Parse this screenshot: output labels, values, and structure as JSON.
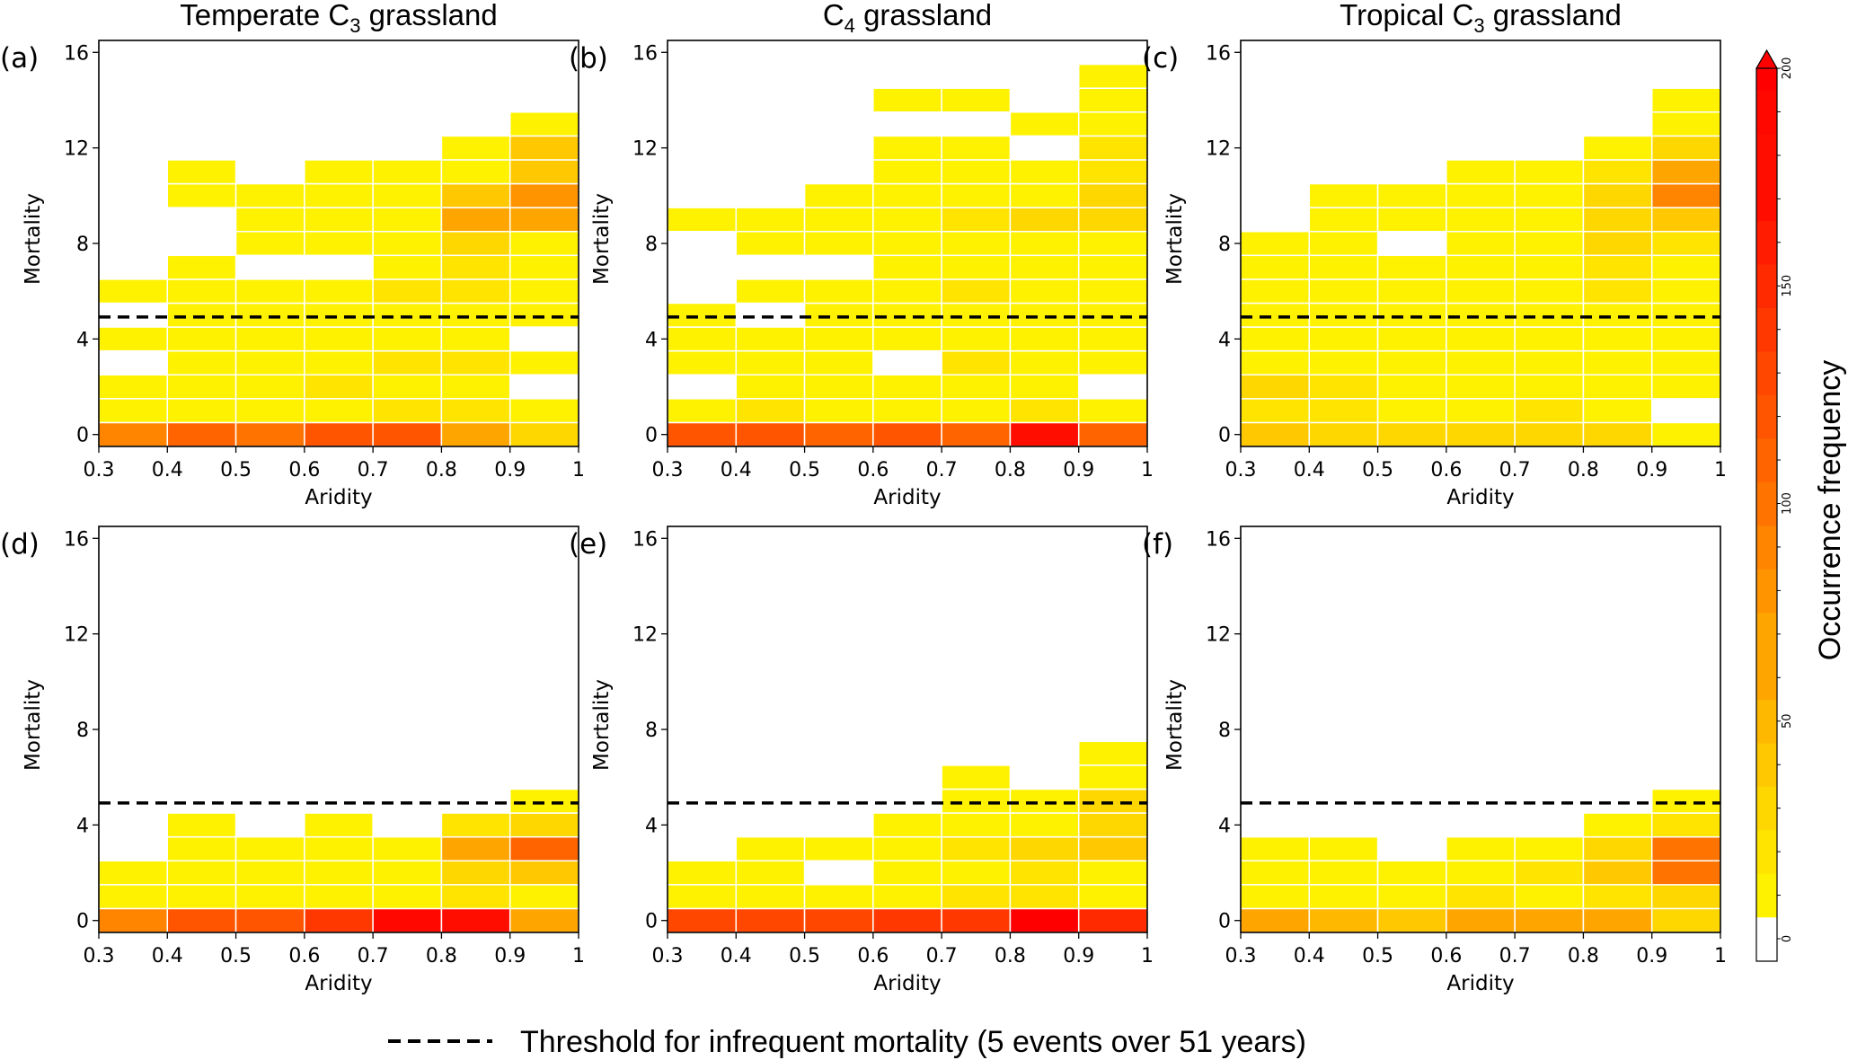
{
  "chart_data": {
    "type": "heatmap",
    "xlabel": "Aridity",
    "ylabel": "Mortality",
    "x_bins": [
      0.3,
      0.4,
      0.5,
      0.6,
      0.7,
      0.8,
      0.9,
      1.0
    ],
    "x_tick_labels": [
      "0.3",
      "0.4",
      "0.5",
      "0.6",
      "0.7",
      "0.8",
      "0.9",
      "1"
    ],
    "y_ticks": [
      0,
      4,
      8,
      12,
      16
    ],
    "y_tick_labels": [
      "0",
      "4",
      "8",
      "12",
      "16"
    ],
    "ylim": [
      -0.5,
      16.5
    ],
    "xlim": [
      0.3,
      1.0
    ],
    "threshold": 5,
    "threshold_legend": "Threshold for infrequent mortality (5 events over 51 years)",
    "colorbar": {
      "label": "Occurrence frequency",
      "range": [
        0,
        200
      ],
      "ticks": [
        0,
        50,
        100,
        150,
        200
      ],
      "tick_labels": [
        "0",
        "50",
        "100",
        "150",
        "200"
      ],
      "step": 10,
      "extend": "max",
      "white_below": 5
    },
    "column_titles": [
      {
        "pre": "Temperate C",
        "sub": "3",
        "post": " grassland"
      },
      {
        "pre": "C",
        "sub": "4",
        "post": " grassland"
      },
      {
        "pre": "Tropical C",
        "sub": "3",
        "post": " grassland"
      }
    ],
    "panels": [
      {
        "label": "(a)",
        "note": "rows = mortality 0..16, columns = aridity bins 0.3-0.4 ... 0.9-1.0; 0 means empty (white)",
        "values": [
          [
            85,
            105,
            100,
            125,
            125,
            70,
            35
          ],
          [
            10,
            10,
            10,
            10,
            18,
            18,
            10
          ],
          [
            10,
            10,
            10,
            18,
            10,
            10,
            0
          ],
          [
            0,
            10,
            10,
            10,
            18,
            18,
            10
          ],
          [
            10,
            10,
            10,
            10,
            10,
            10,
            0
          ],
          [
            0,
            10,
            10,
            10,
            10,
            10,
            10
          ],
          [
            10,
            10,
            10,
            10,
            18,
            22,
            10
          ],
          [
            0,
            10,
            0,
            0,
            10,
            22,
            10
          ],
          [
            0,
            0,
            10,
            10,
            10,
            28,
            10
          ],
          [
            0,
            0,
            10,
            10,
            10,
            65,
            65
          ],
          [
            0,
            10,
            10,
            10,
            10,
            45,
            75
          ],
          [
            0,
            10,
            0,
            10,
            10,
            10,
            40
          ],
          [
            0,
            0,
            0,
            0,
            0,
            10,
            40
          ],
          [
            0,
            0,
            0,
            0,
            0,
            0,
            10
          ],
          [
            0,
            0,
            0,
            0,
            0,
            0,
            0
          ],
          [
            0,
            0,
            0,
            0,
            0,
            0,
            0
          ],
          [
            0,
            0,
            0,
            0,
            0,
            0,
            0
          ]
        ]
      },
      {
        "label": "(b)",
        "values": [
          [
            115,
            115,
            105,
            115,
            110,
            175,
            110
          ],
          [
            10,
            18,
            10,
            10,
            10,
            22,
            10
          ],
          [
            0,
            10,
            10,
            10,
            10,
            10,
            0
          ],
          [
            10,
            10,
            10,
            0,
            18,
            10,
            10
          ],
          [
            10,
            10,
            10,
            10,
            10,
            10,
            10
          ],
          [
            10,
            0,
            10,
            10,
            10,
            10,
            10
          ],
          [
            0,
            10,
            10,
            10,
            18,
            10,
            10
          ],
          [
            0,
            0,
            0,
            10,
            10,
            10,
            10
          ],
          [
            0,
            10,
            10,
            10,
            10,
            10,
            10
          ],
          [
            10,
            10,
            10,
            10,
            18,
            28,
            28
          ],
          [
            0,
            0,
            10,
            10,
            10,
            10,
            28
          ],
          [
            0,
            0,
            0,
            10,
            10,
            10,
            22
          ],
          [
            0,
            0,
            0,
            10,
            10,
            0,
            22
          ],
          [
            0,
            0,
            0,
            0,
            0,
            10,
            10
          ],
          [
            0,
            0,
            0,
            10,
            10,
            0,
            10
          ],
          [
            0,
            0,
            0,
            0,
            0,
            0,
            10
          ],
          [
            0,
            0,
            0,
            0,
            0,
            0,
            0
          ]
        ]
      },
      {
        "label": "(c)",
        "values": [
          [
            40,
            30,
            30,
            35,
            30,
            28,
            10
          ],
          [
            22,
            22,
            10,
            10,
            18,
            10,
            0
          ],
          [
            28,
            22,
            10,
            10,
            10,
            10,
            10
          ],
          [
            10,
            10,
            10,
            10,
            10,
            10,
            10
          ],
          [
            10,
            10,
            10,
            10,
            10,
            10,
            10
          ],
          [
            10,
            10,
            10,
            10,
            10,
            10,
            10
          ],
          [
            10,
            10,
            10,
            10,
            10,
            22,
            10
          ],
          [
            10,
            10,
            10,
            10,
            10,
            22,
            10
          ],
          [
            10,
            10,
            0,
            10,
            10,
            28,
            22
          ],
          [
            0,
            10,
            10,
            10,
            10,
            30,
            45
          ],
          [
            0,
            10,
            10,
            10,
            10,
            35,
            90
          ],
          [
            0,
            0,
            0,
            10,
            10,
            22,
            70
          ],
          [
            0,
            0,
            0,
            0,
            0,
            10,
            30
          ],
          [
            0,
            0,
            0,
            0,
            0,
            0,
            10
          ],
          [
            0,
            0,
            0,
            0,
            0,
            0,
            10
          ],
          [
            0,
            0,
            0,
            0,
            0,
            0,
            0
          ],
          [
            0,
            0,
            0,
            0,
            0,
            0,
            0
          ]
        ]
      },
      {
        "label": "(d)",
        "values": [
          [
            85,
            120,
            120,
            145,
            190,
            175,
            70
          ],
          [
            10,
            10,
            10,
            10,
            10,
            18,
            10
          ],
          [
            10,
            10,
            10,
            10,
            10,
            30,
            45
          ],
          [
            0,
            10,
            10,
            10,
            10,
            60,
            110
          ],
          [
            0,
            10,
            0,
            10,
            0,
            18,
            28
          ],
          [
            0,
            0,
            0,
            0,
            0,
            0,
            10
          ],
          [
            0,
            0,
            0,
            0,
            0,
            0,
            0
          ],
          [
            0,
            0,
            0,
            0,
            0,
            0,
            0
          ],
          [
            0,
            0,
            0,
            0,
            0,
            0,
            0
          ],
          [
            0,
            0,
            0,
            0,
            0,
            0,
            0
          ],
          [
            0,
            0,
            0,
            0,
            0,
            0,
            0
          ],
          [
            0,
            0,
            0,
            0,
            0,
            0,
            0
          ],
          [
            0,
            0,
            0,
            0,
            0,
            0,
            0
          ],
          [
            0,
            0,
            0,
            0,
            0,
            0,
            0
          ],
          [
            0,
            0,
            0,
            0,
            0,
            0,
            0
          ],
          [
            0,
            0,
            0,
            0,
            0,
            0,
            0
          ],
          [
            0,
            0,
            0,
            0,
            0,
            0,
            0
          ]
        ]
      },
      {
        "label": "(e)",
        "values": [
          [
            135,
            135,
            135,
            140,
            140,
            200,
            150
          ],
          [
            10,
            10,
            10,
            10,
            18,
            18,
            10
          ],
          [
            10,
            10,
            0,
            10,
            10,
            22,
            10
          ],
          [
            0,
            10,
            10,
            10,
            18,
            28,
            38
          ],
          [
            0,
            0,
            0,
            10,
            10,
            10,
            28
          ],
          [
            0,
            0,
            0,
            0,
            10,
            10,
            30
          ],
          [
            0,
            0,
            0,
            0,
            10,
            0,
            10
          ],
          [
            0,
            0,
            0,
            0,
            0,
            0,
            10
          ],
          [
            0,
            0,
            0,
            0,
            0,
            0,
            0
          ],
          [
            0,
            0,
            0,
            0,
            0,
            0,
            0
          ],
          [
            0,
            0,
            0,
            0,
            0,
            0,
            0
          ],
          [
            0,
            0,
            0,
            0,
            0,
            0,
            0
          ],
          [
            0,
            0,
            0,
            0,
            0,
            0,
            0
          ],
          [
            0,
            0,
            0,
            0,
            0,
            0,
            0
          ],
          [
            0,
            0,
            0,
            0,
            0,
            0,
            0
          ],
          [
            0,
            0,
            0,
            0,
            0,
            0,
            0
          ],
          [
            0,
            0,
            0,
            0,
            0,
            0,
            0
          ]
        ]
      },
      {
        "label": "(f)",
        "values": [
          [
            65,
            55,
            48,
            60,
            65,
            68,
            28
          ],
          [
            10,
            10,
            10,
            18,
            10,
            18,
            30
          ],
          [
            10,
            10,
            10,
            10,
            18,
            40,
            95
          ],
          [
            10,
            10,
            0,
            10,
            10,
            30,
            95
          ],
          [
            0,
            0,
            0,
            0,
            0,
            10,
            22
          ],
          [
            0,
            0,
            0,
            0,
            0,
            0,
            10
          ],
          [
            0,
            0,
            0,
            0,
            0,
            0,
            0
          ],
          [
            0,
            0,
            0,
            0,
            0,
            0,
            0
          ],
          [
            0,
            0,
            0,
            0,
            0,
            0,
            0
          ],
          [
            0,
            0,
            0,
            0,
            0,
            0,
            0
          ],
          [
            0,
            0,
            0,
            0,
            0,
            0,
            0
          ],
          [
            0,
            0,
            0,
            0,
            0,
            0,
            0
          ],
          [
            0,
            0,
            0,
            0,
            0,
            0,
            0
          ],
          [
            0,
            0,
            0,
            0,
            0,
            0,
            0
          ],
          [
            0,
            0,
            0,
            0,
            0,
            0,
            0
          ],
          [
            0,
            0,
            0,
            0,
            0,
            0,
            0
          ],
          [
            0,
            0,
            0,
            0,
            0,
            0,
            0
          ]
        ]
      }
    ]
  },
  "colors": {
    "colormap_stops": [
      "#fff200",
      "#ffe400",
      "#ffd700",
      "#ffc800",
      "#ffb800",
      "#ffa500",
      "#ff9400",
      "#ff8400",
      "#ff7300",
      "#ff6400",
      "#ff5500",
      "#ff4700",
      "#ff3800",
      "#ff2a00",
      "#ff1c00",
      "#ff0e00",
      "#ff0800",
      "#ff0000"
    ],
    "threshold_line": "#000000",
    "grid": "#ffffff"
  }
}
